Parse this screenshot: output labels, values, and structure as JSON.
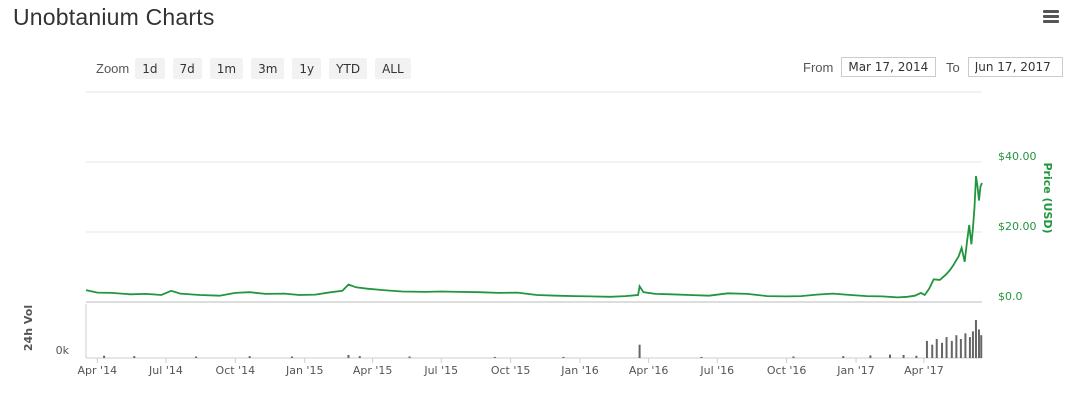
{
  "header": {
    "title": "Unobtanium Charts"
  },
  "toolbar": {
    "zoom_label": "Zoom",
    "zoom_buttons": [
      "1d",
      "7d",
      "1m",
      "3m",
      "1y",
      "YTD",
      "ALL"
    ],
    "from_label": "From",
    "from_value": "Mar 17, 2014",
    "to_label": "To",
    "to_value": "Jun 17, 2017"
  },
  "chart_data": {
    "type": "line",
    "title": "",
    "xlabel": "",
    "x_ticks": [
      "Apr '14",
      "Jul '14",
      "Oct '14",
      "Jan '15",
      "Apr '15",
      "Jul '15",
      "Oct '15",
      "Jan '16",
      "Apr '16",
      "Jul '16",
      "Oct '16",
      "Jan '17",
      "Apr '17"
    ],
    "x_range": [
      "2014-03-17",
      "2017-06-17"
    ],
    "ylim": [
      0,
      40
    ],
    "y_ticks": [
      "$0.0",
      "$20.00",
      "$40.00"
    ],
    "ylabel": "Price (USD)",
    "series": [
      {
        "name": "Price (USD)",
        "color": "#22963e",
        "x": [
          "2014-03-17",
          "2014-04-01",
          "2014-04-20",
          "2014-05-15",
          "2014-06-05",
          "2014-06-25",
          "2014-07-08",
          "2014-07-20",
          "2014-08-15",
          "2014-09-10",
          "2014-10-01",
          "2014-10-20",
          "2014-11-10",
          "2014-12-05",
          "2014-12-25",
          "2015-01-15",
          "2015-02-05",
          "2015-02-20",
          "2015-02-28",
          "2015-03-10",
          "2015-03-25",
          "2015-04-15",
          "2015-05-10",
          "2015-06-10",
          "2015-07-01",
          "2015-07-25",
          "2015-08-20",
          "2015-09-15",
          "2015-10-10",
          "2015-11-05",
          "2015-12-01",
          "2015-12-25",
          "2016-01-15",
          "2016-02-10",
          "2016-03-01",
          "2016-03-18",
          "2016-03-20",
          "2016-03-25",
          "2016-04-10",
          "2016-05-01",
          "2016-05-25",
          "2016-06-20",
          "2016-07-15",
          "2016-08-10",
          "2016-09-05",
          "2016-10-01",
          "2016-10-20",
          "2016-11-10",
          "2016-12-01",
          "2016-12-25",
          "2017-01-15",
          "2017-02-05",
          "2017-02-25",
          "2017-03-10",
          "2017-03-20",
          "2017-03-28",
          "2017-04-02",
          "2017-04-08",
          "2017-04-14",
          "2017-04-22",
          "2017-04-30",
          "2017-05-05",
          "2017-05-10",
          "2017-05-14",
          "2017-05-17",
          "2017-05-21",
          "2017-05-25",
          "2017-05-28",
          "2017-05-31",
          "2017-06-03",
          "2017-06-05",
          "2017-06-07",
          "2017-06-09",
          "2017-06-11",
          "2017-06-13",
          "2017-06-15",
          "2017-06-17"
        ],
        "values": [
          3.4,
          2.7,
          2.6,
          2.2,
          2.3,
          2.0,
          3.2,
          2.4,
          2.0,
          1.8,
          2.6,
          2.8,
          2.3,
          2.4,
          2.0,
          2.1,
          2.8,
          3.2,
          5.0,
          4.2,
          3.8,
          3.4,
          3.0,
          2.9,
          3.0,
          2.9,
          2.8,
          2.6,
          2.7,
          2.0,
          1.8,
          1.7,
          1.6,
          1.5,
          1.7,
          2.0,
          4.5,
          2.8,
          2.3,
          2.2,
          2.0,
          1.8,
          2.5,
          2.3,
          1.7,
          1.6,
          1.7,
          2.1,
          2.4,
          2.0,
          1.7,
          1.6,
          1.3,
          1.5,
          1.8,
          2.6,
          2.0,
          3.8,
          6.5,
          6.3,
          7.8,
          9.0,
          10.5,
          12.0,
          13.0,
          15.5,
          11.5,
          17.0,
          22.0,
          16.5,
          21.0,
          27.0,
          36.0,
          33.0,
          29.0,
          33.0,
          34.0
        ]
      }
    ],
    "volume": {
      "ylabel": "24h Vol",
      "y_tick": "0k",
      "x": [
        "2014-04-10",
        "2014-05-20",
        "2014-08-10",
        "2014-10-20",
        "2014-12-15",
        "2015-02-28",
        "2015-03-15",
        "2015-05-20",
        "2015-09-10",
        "2015-12-10",
        "2016-03-20",
        "2016-06-10",
        "2016-10-10",
        "2016-12-15",
        "2017-01-20",
        "2017-02-15",
        "2017-03-05",
        "2017-03-22",
        "2017-04-05",
        "2017-04-12",
        "2017-04-18",
        "2017-04-25",
        "2017-05-01",
        "2017-05-08",
        "2017-05-14",
        "2017-05-20",
        "2017-05-26",
        "2017-06-01",
        "2017-06-05",
        "2017-06-09",
        "2017-06-13",
        "2017-06-16"
      ],
      "values": [
        0.06,
        0.05,
        0.04,
        0.05,
        0.04,
        0.08,
        0.05,
        0.04,
        0.03,
        0.03,
        0.35,
        0.03,
        0.04,
        0.05,
        0.07,
        0.09,
        0.08,
        0.06,
        0.45,
        0.35,
        0.5,
        0.4,
        0.55,
        0.45,
        0.6,
        0.5,
        0.65,
        0.55,
        0.7,
        1.0,
        0.75,
        0.6
      ]
    }
  }
}
